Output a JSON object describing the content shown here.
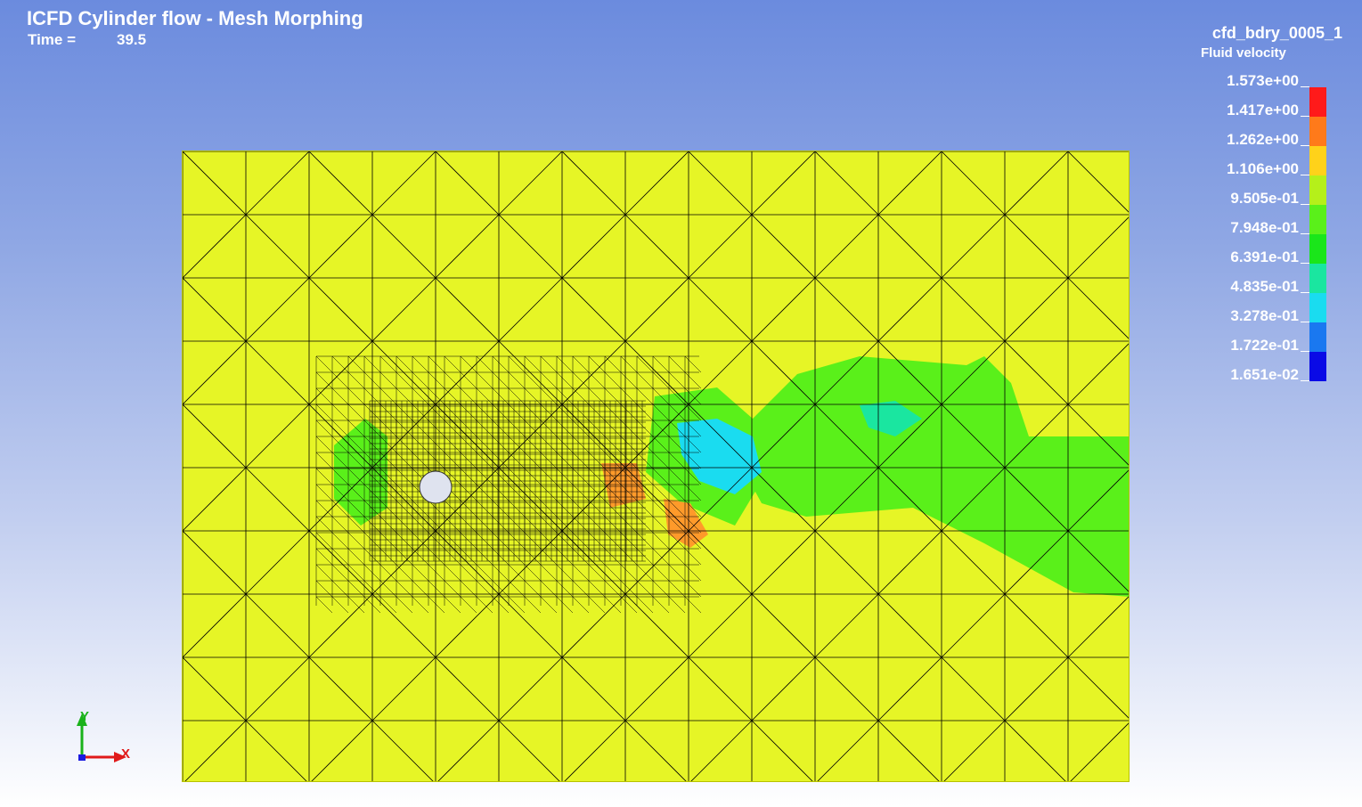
{
  "header": {
    "title": "ICFD Cylinder flow - Mesh Morphing",
    "time_label": "Time =",
    "time_value": "39.5"
  },
  "legend": {
    "part_name": "cfd_bdry_0005_1",
    "variable": "Fluid velocity",
    "levels": [
      "1.573e+00",
      "1.417e+00",
      "1.262e+00",
      "1.106e+00",
      "9.505e-01",
      "7.948e-01",
      "6.391e-01",
      "4.835e-01",
      "3.278e-01",
      "1.722e-01",
      "1.651e-02"
    ],
    "colors": [
      "#ff1a1a",
      "#ff7a1a",
      "#ffd21a",
      "#b5f01a",
      "#5af01a",
      "#1ae61a",
      "#1ae6a0",
      "#1adcf0",
      "#1a78f0",
      "#0a0ae6"
    ]
  },
  "triad": {
    "y_label": "Y",
    "x_label": "X"
  },
  "plot": {
    "background_color": "#e6f526",
    "mesh_color": "#000000",
    "cylinder_color": "#dfe3ef"
  }
}
